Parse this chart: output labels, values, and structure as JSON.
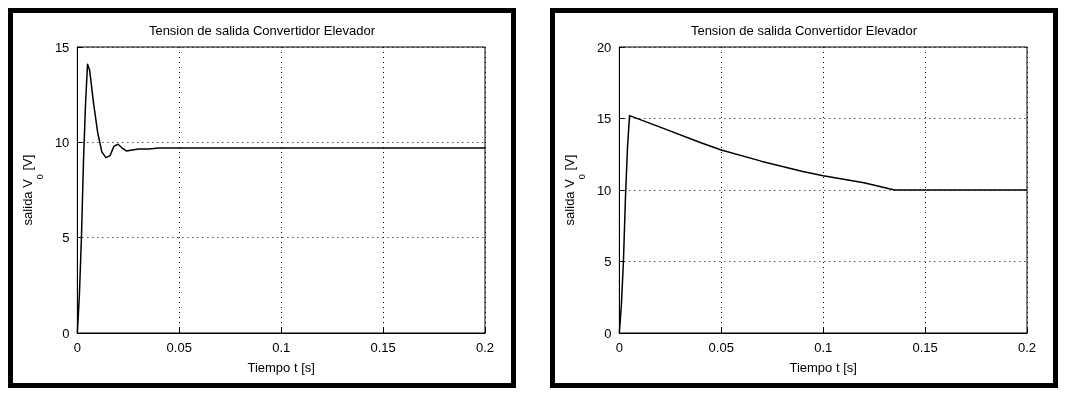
{
  "chart_data": [
    {
      "type": "line",
      "title": "Tension de salida Convertidor Elevador",
      "xlabel": "Tiempo t [s]",
      "ylabel": "salida V$_{0}$ [V]",
      "xlim": [
        0,
        0.2
      ],
      "xticks": [
        0,
        0.05,
        0.1,
        0.15,
        0.2
      ],
      "ylim": [
        0,
        15
      ],
      "yticks": [
        0,
        5,
        10,
        15
      ],
      "grid": true,
      "marker": "none",
      "line_style": "solid",
      "series": [
        {
          "color": "#000000",
          "x": [
            0,
            0.001,
            0.002,
            0.003,
            0.004,
            0.005,
            0.006,
            0.008,
            0.01,
            0.012,
            0.014,
            0.016,
            0.018,
            0.02,
            0.022,
            0.024,
            0.027,
            0.03,
            0.035,
            0.04,
            0.2
          ],
          "values": [
            0,
            2,
            5,
            9,
            12,
            14.1,
            13.8,
            12,
            10.5,
            9.5,
            9.2,
            9.3,
            9.8,
            9.9,
            9.7,
            9.55,
            9.6,
            9.65,
            9.65,
            9.7,
            9.7
          ]
        }
      ]
    },
    {
      "type": "line",
      "title": "Tension de salida Convertidor Elevador",
      "xlabel": "Tiempo t [s]",
      "ylabel": "salida V$_{0}$ [V]",
      "xlim": [
        0,
        0.2
      ],
      "xticks": [
        0,
        0.05,
        0.1,
        0.15,
        0.2
      ],
      "ylim": [
        0,
        20
      ],
      "yticks": [
        0,
        5,
        10,
        15,
        20
      ],
      "grid": true,
      "marker": "none",
      "line_style": "solid",
      "series": [
        {
          "color": "#000000",
          "x": [
            0,
            0.001,
            0.002,
            0.003,
            0.004,
            0.005,
            0.02,
            0.04,
            0.05,
            0.07,
            0.09,
            0.1,
            0.12,
            0.135,
            0.2
          ],
          "values": [
            0,
            2,
            5,
            9.5,
            13,
            15.2,
            14.4,
            13.3,
            12.8,
            12,
            11.3,
            11,
            10.5,
            10,
            10
          ]
        }
      ]
    }
  ]
}
